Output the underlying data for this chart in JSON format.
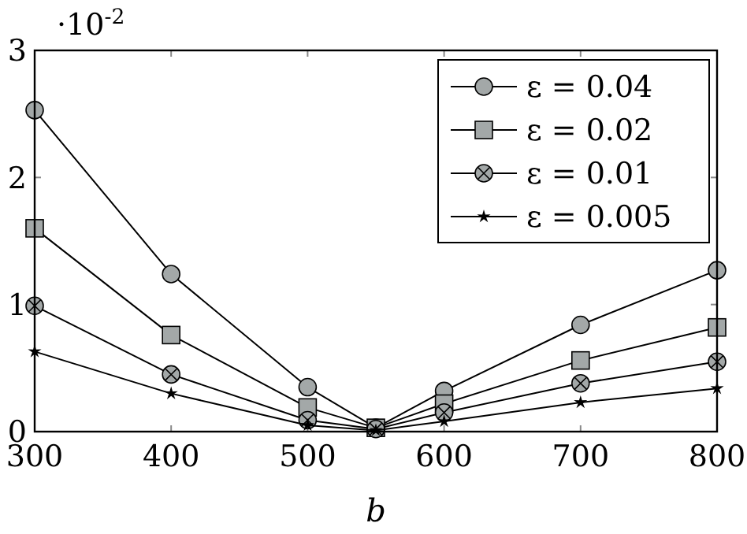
{
  "chart_data": {
    "type": "line",
    "xlabel": "b",
    "x": [
      300,
      400,
      500,
      550,
      600,
      700,
      800
    ],
    "xlim": [
      300,
      800
    ],
    "xticks": [
      300,
      400,
      500,
      600,
      700,
      800
    ],
    "ylim": [
      0,
      3
    ],
    "yticks": [
      0,
      1,
      2,
      3
    ],
    "annotations": [
      "·10$^{-2}$"
    ],
    "legend": "top right",
    "grid": false,
    "line_style": "solid",
    "series": [
      {
        "name": "ε = 0.04",
        "color": "#000000",
        "marker": "circle",
        "values": [
          2.53,
          1.24,
          0.35,
          0.03,
          0.32,
          0.84,
          1.27
        ]
      },
      {
        "name": "ε = 0.02",
        "color": "#000000",
        "marker": "square",
        "values": [
          1.6,
          0.76,
          0.19,
          0.03,
          0.22,
          0.56,
          0.82
        ]
      },
      {
        "name": "ε = 0.01",
        "color": "#000000",
        "marker": "cross",
        "values": [
          0.99,
          0.45,
          0.09,
          0.02,
          0.15,
          0.38,
          0.55
        ]
      },
      {
        "name": "ε = 0.005",
        "color": "#000000",
        "marker": "star",
        "values": [
          0.63,
          0.3,
          0.05,
          0.01,
          0.08,
          0.23,
          0.34
        ]
      }
    ]
  }
}
